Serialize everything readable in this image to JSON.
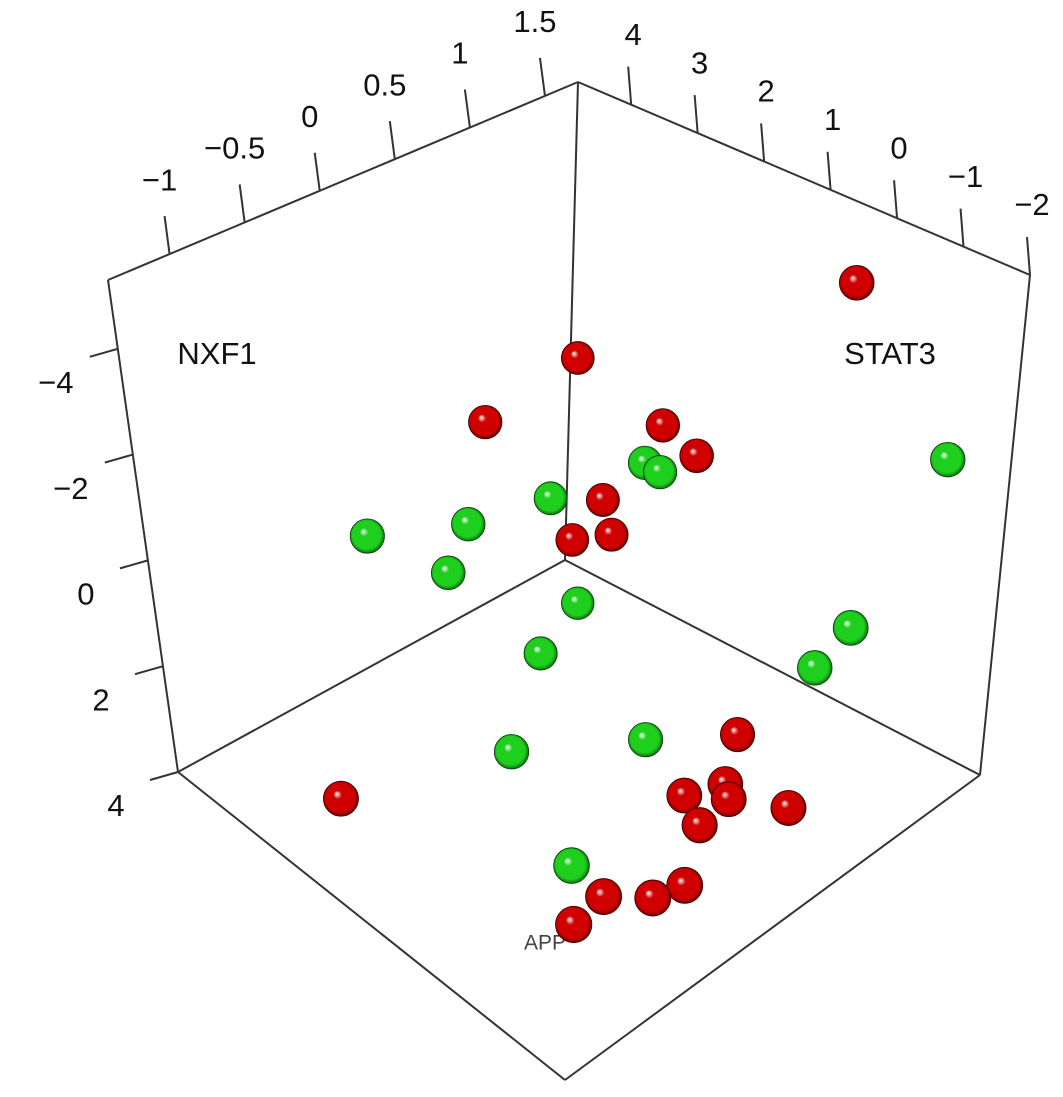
{
  "chart_data": {
    "type": "scatter3d",
    "xlabel": "NXF1",
    "ylabel": "STAT3",
    "zlabel": "APP",
    "xlim": [
      -1.41,
      1.72
    ],
    "ylim": [
      -2,
      4.8
    ],
    "zlim": [
      -5.3,
      4
    ],
    "xticks": [
      {
        "value": -1,
        "label": "−1"
      },
      {
        "value": -0.5,
        "label": "−0.5"
      },
      0,
      0.5,
      1,
      1.5
    ],
    "yticks": [
      {
        "value": -2,
        "label": "−2"
      },
      {
        "value": -1,
        "label": "−1"
      },
      0,
      1,
      2,
      3,
      4
    ],
    "zticks": [
      {
        "value": -4,
        "label": "−4"
      },
      {
        "value": -2,
        "label": "−2"
      },
      0,
      2,
      4
    ],
    "series": [
      {
        "color": "#d00000",
        "x": [
          1.25,
          1.29,
          0.62,
          1.25,
          1.25,
          1.25,
          1.25,
          1.27,
          -0.82,
          1.16,
          0.81,
          0.73,
          0.59,
          0.47,
          0.89,
          0.07,
          -0.12,
          -0.3,
          -0.57
        ],
        "y": [
          -0.46,
          3.78,
          3.78,
          2.35,
          1.81,
          3.26,
          3.11,
          3.78,
          3.24,
          0.79,
          0.24,
          0.01,
          0.45,
          -0.07,
          -0.64,
          -0.7,
          -0.58,
          -0.14,
          -0.23
        ],
        "z": [
          -5.04,
          -1.1,
          -0.76,
          -0.73,
          -0.48,
          1.25,
          1.82,
          2.37,
          4,
          4,
          4,
          4,
          4,
          4,
          4,
          4,
          4,
          4,
          4
        ]
      },
      {
        "color": "#1ecf1e",
        "x": [
          -0.26,
          0.48,
          0.32,
          1.1,
          1.25,
          1.25,
          1.72,
          1.25,
          1.25,
          1.45,
          0.95,
          0.79,
          0.19,
          -0.25
        ],
        "y": [
          3.78,
          3.78,
          3.78,
          3.78,
          2.61,
          2.37,
          -1.05,
          -0.72,
          -0.2,
          4.04,
          3.62,
          1.53,
          2.5,
          0.52
        ],
        "z": [
          0.24,
          1.0,
          1.71,
          1.34,
          0.14,
          0.17,
          -1.34,
          1.22,
          2.28,
          4,
          4,
          4,
          4,
          4
        ]
      }
    ]
  }
}
